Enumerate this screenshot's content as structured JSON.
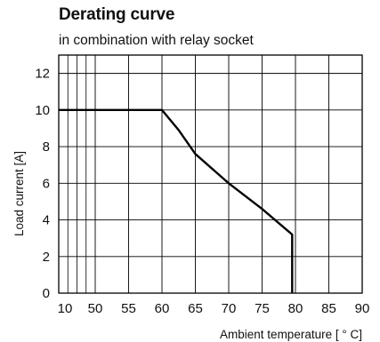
{
  "chart_data": {
    "type": "line",
    "title": "Derating curve",
    "subtitle": "in combination with relay socket",
    "xlabel": "Ambient temperature [ ° C]",
    "ylabel": "Load current [A]",
    "x_ticks": [
      10,
      50,
      55,
      60,
      65,
      70,
      75,
      80,
      85,
      90
    ],
    "x_minor_gridlines": [
      20,
      30,
      40
    ],
    "y_ticks": [
      0,
      2,
      4,
      6,
      8,
      10,
      12
    ],
    "ylim": [
      0,
      13
    ],
    "grid": true,
    "series": [
      {
        "x": [
          10,
          60,
          62.5,
          65,
          70,
          75,
          79.5,
          79.5
        ],
        "y": [
          10,
          10,
          8.9,
          7.6,
          6.0,
          4.6,
          3.2,
          0
        ],
        "color": "#000000"
      }
    ]
  }
}
